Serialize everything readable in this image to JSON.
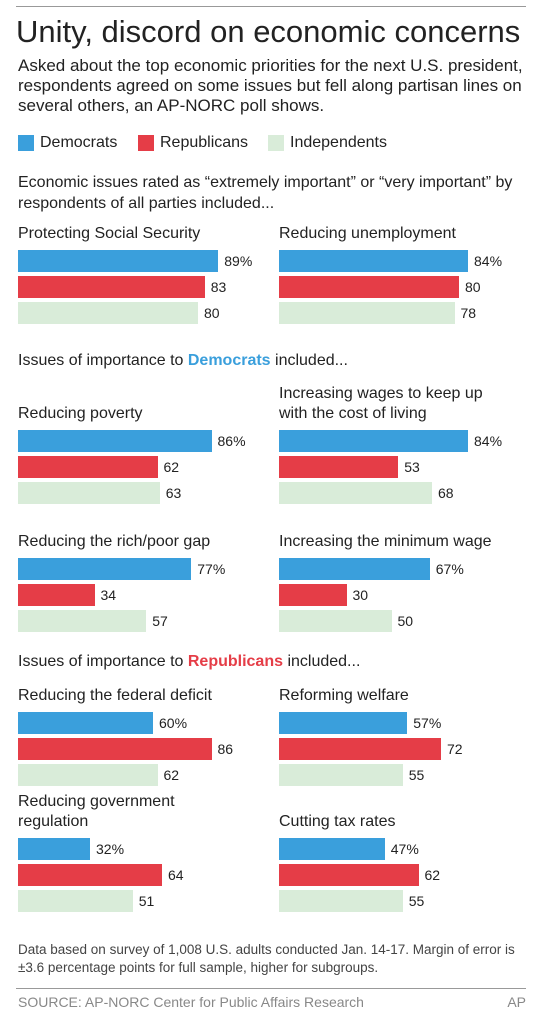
{
  "title": "Unity, discord on economic concerns",
  "subtitle": "Asked about the top economic priorities for the next U.S. president, respondents agreed on some issues but fell along partisan lines on several others, an AP-NORC poll shows.",
  "legend": [
    {
      "name": "Democrats",
      "color": "#3a9fdc"
    },
    {
      "name": "Republicans",
      "color": "#e53d47"
    },
    {
      "name": "Independents",
      "color": "#d9ecd9"
    }
  ],
  "sections": [
    [
      "Economic issues rated as “extremely important” or “very important” by respondents of all parties included..."
    ],
    [
      "Issues of importance to ",
      "Democrats",
      " included..."
    ],
    [
      "Issues of importance to ",
      "Republicans",
      " included..."
    ]
  ],
  "chart_data": [
    {
      "type": "bar",
      "title": "Protecting Social Security",
      "values": [
        89,
        83,
        80
      ],
      "value_labels": [
        "89%",
        "83",
        "80"
      ]
    },
    {
      "type": "bar",
      "title": "Reducing unemployment",
      "values": [
        84,
        80,
        78
      ],
      "value_labels": [
        "84%",
        "80",
        "78"
      ]
    },
    {
      "type": "bar",
      "title": "Reducing poverty",
      "values": [
        86,
        62,
        63
      ],
      "value_labels": [
        "86%",
        "62",
        "63"
      ]
    },
    {
      "type": "bar",
      "title": "Increasing wages to keep up with the cost of living",
      "values": [
        84,
        53,
        68
      ],
      "value_labels": [
        "84%",
        "53",
        "68"
      ]
    },
    {
      "type": "bar",
      "title": "Reducing the rich/poor gap",
      "values": [
        77,
        34,
        57
      ],
      "value_labels": [
        "77%",
        "34",
        "57"
      ]
    },
    {
      "type": "bar",
      "title": "Increasing the minimum wage",
      "values": [
        67,
        30,
        50
      ],
      "value_labels": [
        "67%",
        "30",
        "50"
      ]
    },
    {
      "type": "bar",
      "title": "Reducing the federal deficit",
      "values": [
        60,
        86,
        62
      ],
      "value_labels": [
        "60%",
        "86",
        "62"
      ]
    },
    {
      "type": "bar",
      "title": "Reforming welfare",
      "values": [
        57,
        72,
        55
      ],
      "value_labels": [
        "57%",
        "72",
        "55"
      ]
    },
    {
      "type": "bar",
      "title": "Reducing government regulation",
      "values": [
        32,
        64,
        51
      ],
      "value_labels": [
        "32%",
        "64",
        "51"
      ]
    },
    {
      "type": "bar",
      "title": "Cutting tax rates",
      "values": [
        47,
        62,
        55
      ],
      "value_labels": [
        "47%",
        "62",
        "55"
      ]
    }
  ],
  "footnote": "Data based on survey of 1,008 U.S. adults conducted Jan. 14-17. Margin of error is ±3.6 percentage points for full sample, higher for subgroups.",
  "source": "SOURCE: AP-NORC Center for Public Affairs Research",
  "credit": "AP"
}
